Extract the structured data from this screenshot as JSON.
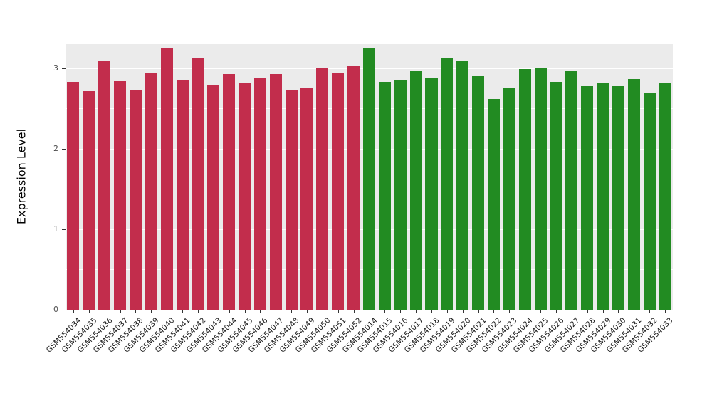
{
  "chart_data": {
    "type": "bar",
    "title": "",
    "xlabel": "",
    "ylabel": "Expression Level",
    "ylim": [
      0,
      3.3
    ],
    "yticks": [
      0,
      1,
      2,
      3
    ],
    "yticks_minor": [
      0.5,
      1.5,
      2.5
    ],
    "grid": true,
    "legend_position": "none",
    "panel_bg": "#EBEBEB",
    "grid_color": "#FFFFFF",
    "group_colors": {
      "group1": "#C22D4C",
      "group2": "#228B22"
    },
    "categories": [
      "GSM554034",
      "GSM554035",
      "GSM554036",
      "GSM554037",
      "GSM554038",
      "GSM554039",
      "GSM554040",
      "GSM554041",
      "GSM554042",
      "GSM554043",
      "GSM554044",
      "GSM554045",
      "GSM554046",
      "GSM554047",
      "GSM554048",
      "GSM554049",
      "GSM554050",
      "GSM554051",
      "GSM554052",
      "GSM554014",
      "GSM554015",
      "GSM554016",
      "GSM554017",
      "GSM554018",
      "GSM554019",
      "GSM554020",
      "GSM554021",
      "GSM554022",
      "GSM554023",
      "GSM554024",
      "GSM554025",
      "GSM554026",
      "GSM554027",
      "GSM554028",
      "GSM554029",
      "GSM554030",
      "GSM554031",
      "GSM554032",
      "GSM554033"
    ],
    "values": [
      2.83,
      2.72,
      3.1,
      2.84,
      2.73,
      2.95,
      3.26,
      2.85,
      3.12,
      2.79,
      2.93,
      2.81,
      2.88,
      2.93,
      2.73,
      2.75,
      3.0,
      2.95,
      3.03,
      3.26,
      2.83,
      2.86,
      2.96,
      2.88,
      3.13,
      3.09,
      2.9,
      2.62,
      2.76,
      2.99,
      3.01,
      2.83,
      2.96,
      2.78,
      2.81,
      2.78,
      2.87,
      2.69,
      2.81
    ],
    "groups": [
      "group1",
      "group1",
      "group1",
      "group1",
      "group1",
      "group1",
      "group1",
      "group1",
      "group1",
      "group1",
      "group1",
      "group1",
      "group1",
      "group1",
      "group1",
      "group1",
      "group1",
      "group1",
      "group1",
      "group2",
      "group2",
      "group2",
      "group2",
      "group2",
      "group2",
      "group2",
      "group2",
      "group2",
      "group2",
      "group2",
      "group2",
      "group2",
      "group2",
      "group2",
      "group2",
      "group2",
      "group2",
      "group2",
      "group2"
    ]
  }
}
